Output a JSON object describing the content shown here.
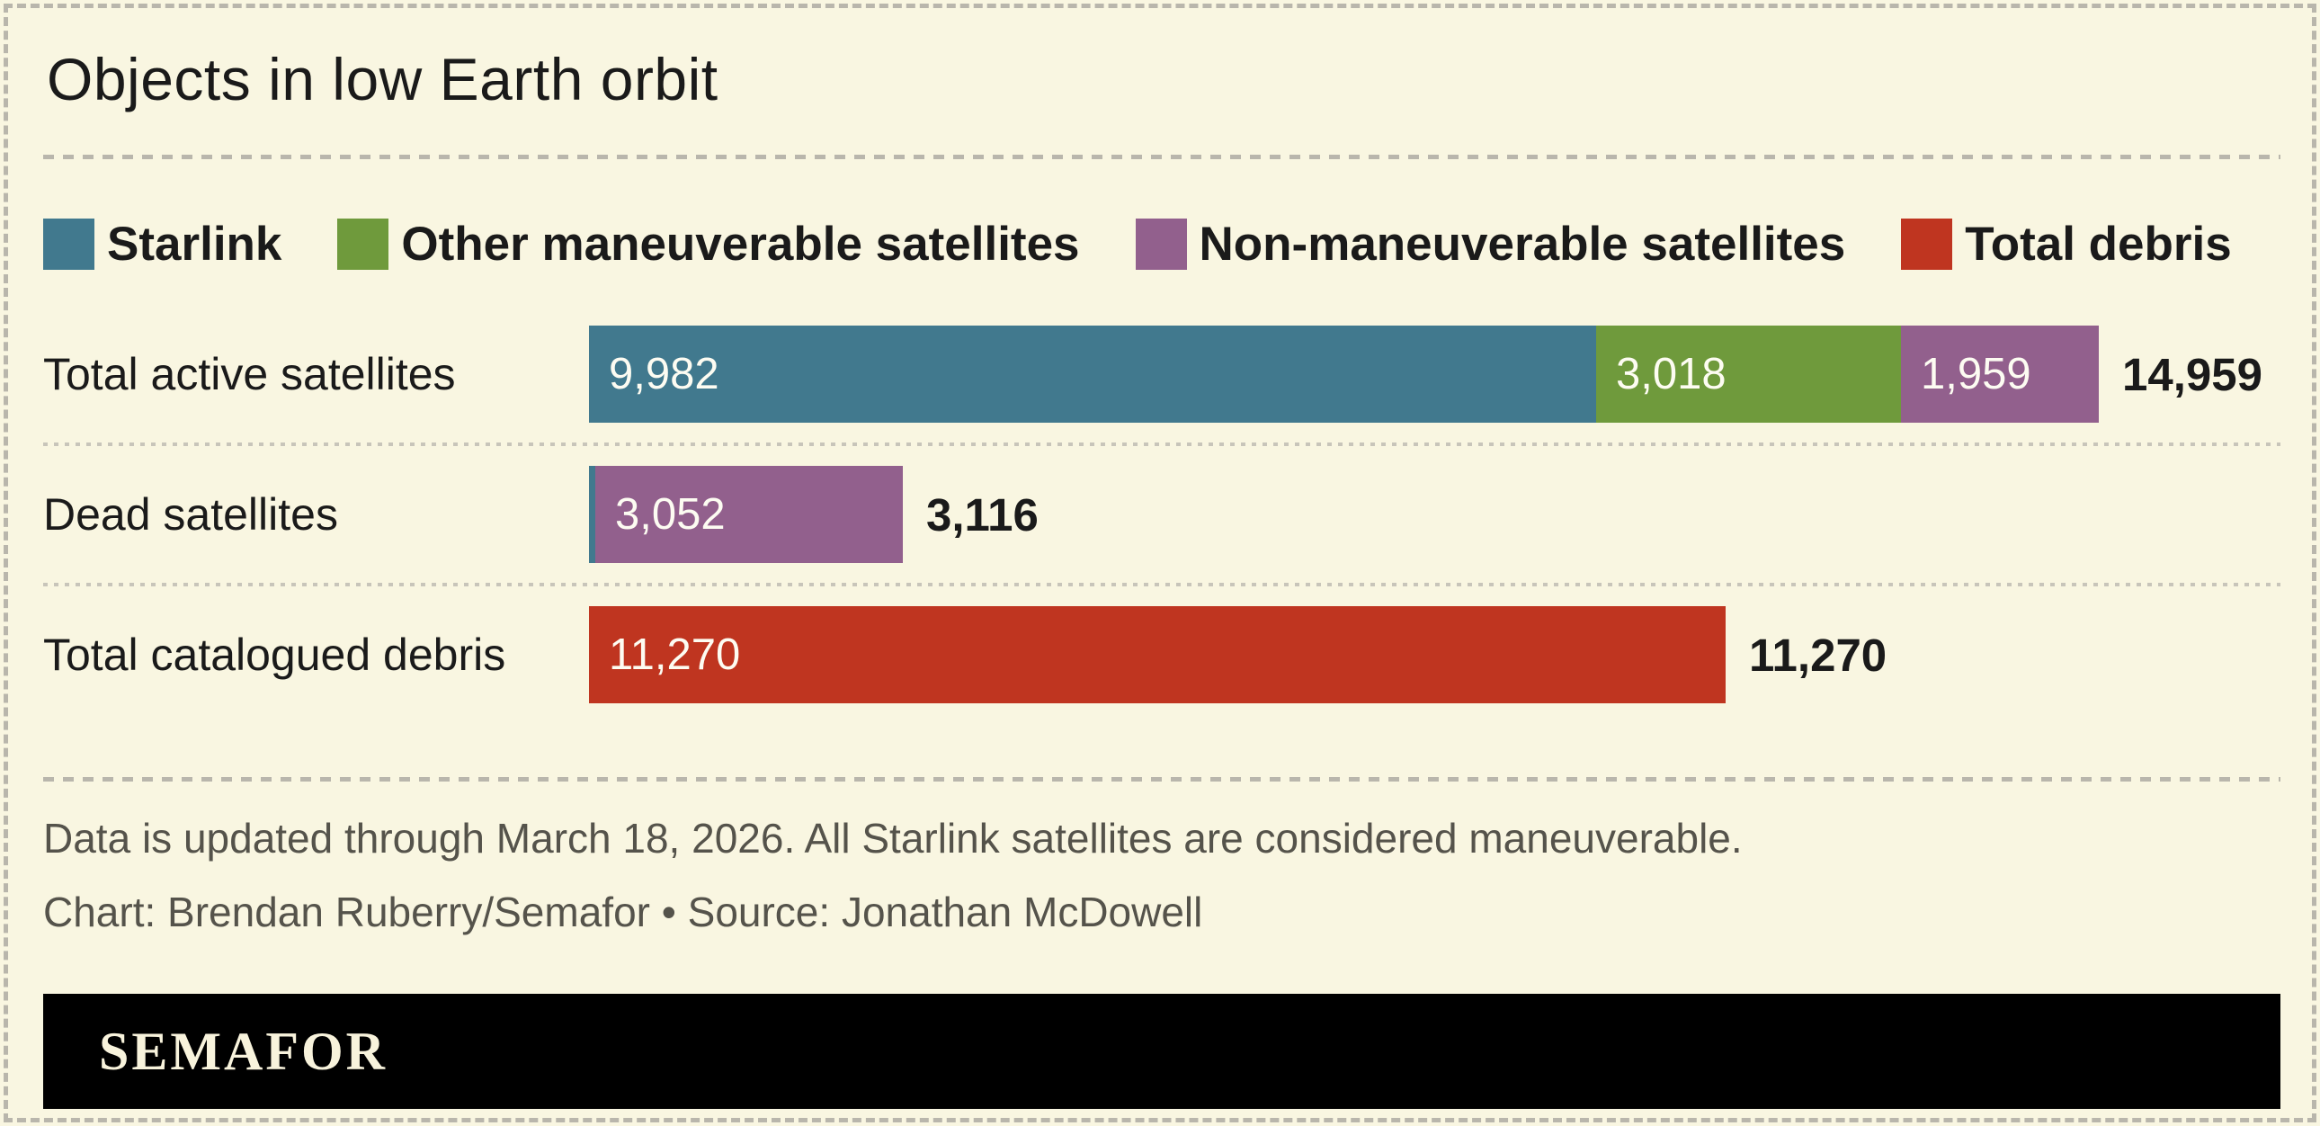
{
  "title": "Objects in low Earth orbit",
  "colors": {
    "background": "#f9f6e1",
    "text": "#1a1a1a",
    "muted_text": "#55534b",
    "dash_border": "#b9b6ac",
    "bar_value_text": "#fdfcf2",
    "logo_bar_bg": "#000000",
    "logo_text": "#f8f3dc"
  },
  "chart_data": {
    "type": "bar",
    "orientation": "horizontal",
    "stacked": true,
    "title": "Objects in low Earth orbit",
    "legend": [
      "Starlink",
      "Other maneuverable satellites",
      "Non-maneuverable satellites",
      "Total debris"
    ],
    "legend_position": "top",
    "series_colors": {
      "Starlink": "#41798e",
      "Other maneuverable satellites": "#6f9a3c",
      "Non-maneuverable satellites": "#92608d",
      "Total debris": "#bf3520"
    },
    "rows": [
      {
        "category": "Total active satellites",
        "total": 14959,
        "total_label": "14,959",
        "segments": [
          {
            "series": "Starlink",
            "value": 9982,
            "label": "9,982"
          },
          {
            "series": "Other maneuverable satellites",
            "value": 3018,
            "label": "3,018"
          },
          {
            "series": "Non-maneuverable satellites",
            "value": 1959,
            "label": "1,959"
          }
        ]
      },
      {
        "category": "Dead satellites",
        "total": 3116,
        "total_label": "3,116",
        "segments": [
          {
            "series": "Starlink",
            "value": 64,
            "label": ""
          },
          {
            "series": "Non-maneuverable satellites",
            "value": 3052,
            "label": "3,052"
          }
        ]
      },
      {
        "category": "Total catalogued debris",
        "total": 11270,
        "total_label": "11,270",
        "segments": [
          {
            "series": "Total debris",
            "value": 11270,
            "label": "11,270"
          }
        ]
      }
    ]
  },
  "footer": {
    "note": "Data is updated through March 18, 2026. All Starlink satellites are considered maneuverable.",
    "credit": "Chart: Brendan Ruberry/Semafor • Source: Jonathan McDowell"
  },
  "logo": {
    "text": "SEMAFOR"
  }
}
